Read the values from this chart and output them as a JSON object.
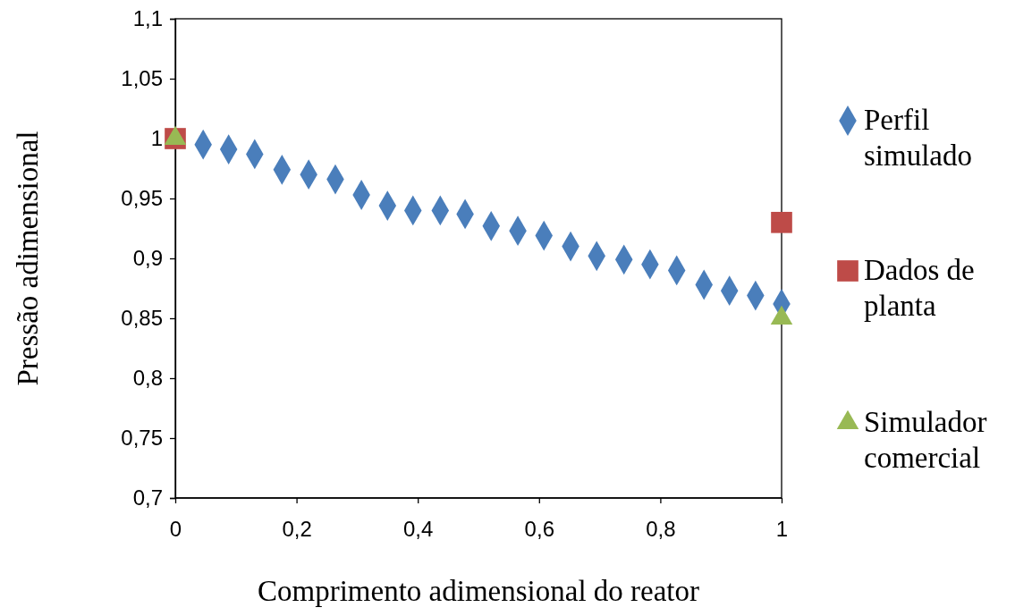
{
  "chart_data": {
    "type": "scatter",
    "xlabel": "Comprimento adimensional do reator",
    "ylabel": "Pressão adimensional",
    "xlim": [
      0,
      1
    ],
    "xticks": [
      0,
      {
        "value": 0.2,
        "label": "0,2"
      },
      {
        "value": 0.4,
        "label": "0,4"
      },
      {
        "value": 0.6,
        "label": "0,6"
      },
      {
        "value": 0.8,
        "label": "0,8"
      },
      1
    ],
    "ylim": [
      0.7,
      1.1
    ],
    "yticks": [
      {
        "value": 0.7,
        "label": "0,7"
      },
      {
        "value": 0.75,
        "label": "0,75"
      },
      {
        "value": 0.8,
        "label": "0,8"
      },
      {
        "value": 0.85,
        "label": "0,85"
      },
      {
        "value": 0.9,
        "label": "0,9"
      },
      {
        "value": 0.95,
        "label": "0,95"
      },
      1,
      {
        "value": 1.05,
        "label": "1,05"
      },
      {
        "value": 1.1,
        "label": "1,1"
      }
    ],
    "grid": false,
    "legend": "right",
    "series": [
      {
        "name": "Perfil simulado",
        "color": "#4a7ebb",
        "marker": "diamond",
        "x": [
          0.046,
          0.088,
          0.131,
          0.176,
          0.22,
          0.264,
          0.307,
          0.35,
          0.392,
          0.437,
          0.478,
          0.521,
          0.565,
          0.608,
          0.652,
          0.695,
          0.74,
          0.783,
          0.827,
          0.872,
          0.914,
          0.957,
          1
        ],
        "values": [
          0.995,
          0.991,
          0.987,
          0.974,
          0.97,
          0.966,
          0.953,
          0.944,
          0.94,
          0.94,
          0.937,
          0.927,
          0.923,
          0.919,
          0.91,
          0.902,
          0.899,
          0.895,
          0.89,
          0.878,
          0.873,
          0.869,
          0.862
        ]
      },
      {
        "name": "Dados de planta",
        "color": "#be4b48",
        "marker": "square",
        "x": [
          0,
          1
        ],
        "values": [
          1,
          0.93
        ]
      },
      {
        "name": "Simulador comercial",
        "color": "#98b954",
        "marker": "triangle",
        "x": [
          0,
          1
        ],
        "values": [
          1,
          0.85
        ]
      }
    ]
  }
}
